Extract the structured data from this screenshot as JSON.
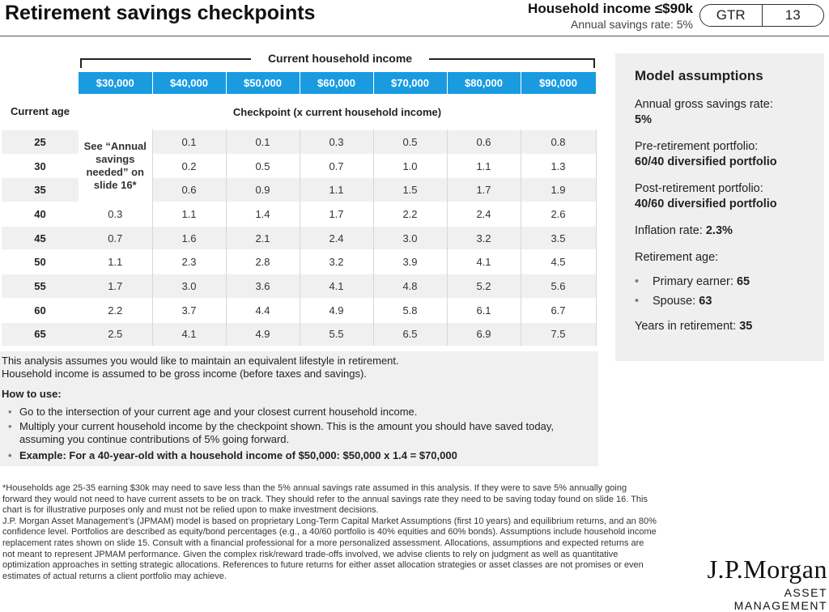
{
  "header": {
    "title": "Retirement savings checkpoints",
    "household_title": "Household income ≤$90k",
    "household_sub": "Annual savings rate: 5%",
    "pill_left": "GTR",
    "pill_right": "13"
  },
  "table": {
    "group_label": "Current household income",
    "incomes": [
      "$30,000",
      "$40,000",
      "$50,000",
      "$60,000",
      "$70,000",
      "$80,000",
      "$90,000"
    ],
    "age_header": "Current age",
    "checkpoint_header": "Checkpoint (x current household income)",
    "note": "See “Annual savings needed” on slide 16*",
    "rows": [
      {
        "age": "25",
        "values": [
          "",
          "0.1",
          "0.1",
          "0.3",
          "0.5",
          "0.6",
          "0.8"
        ]
      },
      {
        "age": "30",
        "values": [
          "",
          "0.2",
          "0.5",
          "0.7",
          "1.0",
          "1.1",
          "1.3"
        ]
      },
      {
        "age": "35",
        "values": [
          "",
          "0.6",
          "0.9",
          "1.1",
          "1.5",
          "1.7",
          "1.9"
        ]
      },
      {
        "age": "40",
        "values": [
          "0.3",
          "1.1",
          "1.4",
          "1.7",
          "2.2",
          "2.4",
          "2.6"
        ]
      },
      {
        "age": "45",
        "values": [
          "0.7",
          "1.6",
          "2.1",
          "2.4",
          "3.0",
          "3.2",
          "3.5"
        ]
      },
      {
        "age": "50",
        "values": [
          "1.1",
          "2.3",
          "2.8",
          "3.2",
          "3.9",
          "4.1",
          "4.5"
        ]
      },
      {
        "age": "55",
        "values": [
          "1.7",
          "3.0",
          "3.6",
          "4.1",
          "4.8",
          "5.2",
          "5.6"
        ]
      },
      {
        "age": "60",
        "values": [
          "2.2",
          "3.7",
          "4.4",
          "4.9",
          "5.8",
          "6.1",
          "6.7"
        ]
      },
      {
        "age": "65",
        "values": [
          "2.5",
          "4.1",
          "4.9",
          "5.5",
          "6.5",
          "6.9",
          "7.5"
        ]
      }
    ]
  },
  "assumptions": {
    "title": "Model assumptions",
    "savings_label": "Annual gross savings rate:",
    "savings_value": "5%",
    "pre_label": "Pre-retirement portfolio:",
    "pre_value": "60/40 diversified portfolio",
    "post_label": "Post-retirement portfolio:",
    "post_value": "40/60 diversified portfolio",
    "inflation_label": "Inflation rate:",
    "inflation_value": "2.3%",
    "age_label": "Retirement age:",
    "primary_label": "Primary earner:",
    "primary_value": "65",
    "spouse_label": "Spouse:",
    "spouse_value": "63",
    "years_label": "Years in retirement:",
    "years_value": "35"
  },
  "howto": {
    "intro1": "This analysis assumes you would like to maintain an equivalent lifestyle in retirement.",
    "intro2": "Household income is assumed to be gross income (before taxes and savings).",
    "heading": "How to use:",
    "step1": "Go to the intersection of your current age and your closest current household income.",
    "step2": "Multiply your current household income by the checkpoint shown. This is the amount you should have saved today, assuming you continue contributions of 5% going forward.",
    "example": "Example: For a 40-year-old with a household income of $50,000: $50,000 x 1.4 = $70,000"
  },
  "footnote": {
    "p1": "*Households age 25-35 earning $30k may need to save less than the 5% annual savings rate assumed in this analysis. If they were to save 5% annually going forward they would not need to have current assets to be on track. They should refer to the annual savings rate they need to be saving today found on slide 16. This chart is for illustrative purposes only and must not be relied upon to make investment decisions.",
    "p2": "J.P. Morgan Asset Management’s (JPMAM) model is based on proprietary Long-Term Capital Market Assumptions (first 10 years) and equilibrium returns, and an 80% confidence level. Portfolios are described as equity/bond percentages (e.g., a 40/60 portfolio is 40% equities and 60% bonds). Assumptions include household income replacement rates shown on slide 15. Consult with a financial professional for a more personalized assessment. Allocations, assumptions and expected returns are not meant to represent JPMAM performance. Given the complex risk/reward trade-offs involved, we advise clients to rely on judgment as well as quantitative optimization approaches in setting strategic allocations. References to future returns for either asset allocation strategies or asset classes are not promises or even estimates of actual returns a client portfolio may achieve."
  },
  "logo": {
    "name": "J.P.Morgan",
    "division": "ASSET MANAGEMENT"
  }
}
